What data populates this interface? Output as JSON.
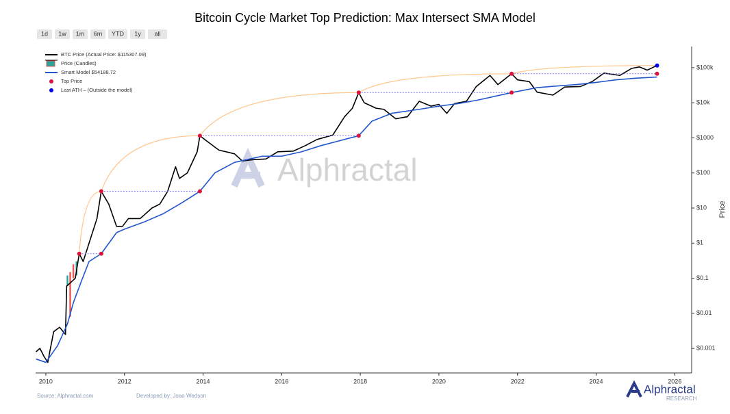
{
  "chart_data": {
    "type": "line",
    "title": "Bitcoin Cycle Market Top Prediction: Max Intersect SMA Model",
    "range_buttons": [
      "1d",
      "1w",
      "1m",
      "6m",
      "YTD",
      "1y",
      "all"
    ],
    "active_button": "all",
    "y_label": "Price",
    "log_scale": true,
    "legend": "top-left",
    "watermark": "Alphractal",
    "logo": {
      "name": "Alphractal",
      "tag": "RESEARCH"
    },
    "source": "Source: Alphractal.com",
    "credit": "Developed by: Joao Wedson",
    "xlim": [
      2009.74,
      2026.43
    ],
    "xticks": [
      2010,
      2012,
      2014,
      2016,
      2018,
      2020,
      2022,
      2024,
      2026
    ],
    "ylim": [
      0.0002,
      400000
    ],
    "yticks": [
      {
        "value": 0.001,
        "label": "$0.001"
      },
      {
        "value": 0.01,
        "label": "$0.01"
      },
      {
        "value": 0.1,
        "label": "$0.1"
      },
      {
        "value": 1,
        "label": "$1"
      },
      {
        "value": 10,
        "label": "$10"
      },
      {
        "value": 100,
        "label": "$100"
      },
      {
        "value": 1000,
        "label": "$1000"
      },
      {
        "value": 10000,
        "label": "$10k"
      },
      {
        "value": 100000,
        "label": "$100k"
      }
    ],
    "series": [
      {
        "name": "BTC Price (Actual Price: $115307.09)",
        "style": "line",
        "color": "#000000",
        "x": [
          2009.75,
          2009.85,
          2009.95,
          2010.05,
          2010.1,
          2010.2,
          2010.35,
          2010.5,
          2010.53,
          2010.6,
          2010.75,
          2010.85,
          2010.95,
          2011.1,
          2011.3,
          2011.41,
          2011.6,
          2011.8,
          2011.95,
          2012.1,
          2012.4,
          2012.7,
          2012.9,
          2013.1,
          2013.3,
          2013.4,
          2013.6,
          2013.85,
          2013.92,
          2014.1,
          2014.4,
          2014.8,
          2015.0,
          2015.3,
          2015.6,
          2015.9,
          2016.3,
          2016.6,
          2016.9,
          2017.3,
          2017.6,
          2017.8,
          2017.96,
          2018.1,
          2018.4,
          2018.6,
          2018.9,
          2019.2,
          2019.5,
          2019.8,
          2020.0,
          2020.2,
          2020.4,
          2020.7,
          2020.95,
          2021.3,
          2021.5,
          2021.85,
          2022.0,
          2022.3,
          2022.5,
          2022.9,
          2023.2,
          2023.6,
          2023.9,
          2024.2,
          2024.6,
          2024.9,
          2025.1,
          2025.3,
          2025.55
        ],
        "values": [
          0.0008,
          0.001,
          0.0006,
          0.0004,
          0.0008,
          0.003,
          0.004,
          0.0025,
          0.06,
          0.07,
          0.1,
          0.5,
          0.3,
          1,
          5,
          30,
          13,
          3,
          3,
          5,
          5,
          10,
          13,
          30,
          150,
          70,
          100,
          400,
          1150,
          800,
          450,
          350,
          220,
          240,
          250,
          400,
          420,
          600,
          900,
          1200,
          4000,
          7000,
          19500,
          10000,
          7000,
          6500,
          3500,
          4000,
          11000,
          8000,
          9000,
          5000,
          9500,
          11000,
          29000,
          60000,
          33000,
          67000,
          45000,
          40000,
          20000,
          16500,
          28000,
          29000,
          40000,
          70000,
          60000,
          95000,
          105000,
          85000,
          115307.09
        ]
      },
      {
        "name": "Price (Candles)",
        "style": "candles",
        "up_color": "#26a69a",
        "down_color": "#ef5350",
        "x": [
          2010.55,
          2010.62,
          2010.7,
          2010.78
        ],
        "open": [
          0.06,
          0.15,
          0.25,
          0.12
        ],
        "close": [
          0.12,
          0.008,
          0.1,
          0.3
        ]
      },
      {
        "name": "Smart Model $54188.72",
        "style": "line",
        "color": "#2255cc",
        "x": [
          2009.75,
          2010.0,
          2010.3,
          2010.55,
          2010.7,
          2010.9,
          2011.1,
          2011.41,
          2011.8,
          2012.0,
          2012.5,
          2013.0,
          2013.5,
          2013.92,
          2014.3,
          2014.8,
          2015.5,
          2016.0,
          2016.5,
          2017.0,
          2017.96,
          2018.3,
          2018.8,
          2019.5,
          2020.0,
          2020.5,
          2021.0,
          2021.85,
          2022.5,
          2023.0,
          2023.5,
          2024.0,
          2024.5,
          2025.0,
          2025.55
        ],
        "values": [
          0.0005,
          0.0004,
          0.0012,
          0.005,
          0.02,
          0.08,
          0.3,
          0.5,
          2,
          2.5,
          4,
          7,
          15,
          30,
          100,
          200,
          300,
          300,
          400,
          600,
          1150,
          3000,
          5000,
          6500,
          8000,
          9500,
          12000,
          19500,
          27000,
          30000,
          33000,
          38000,
          45000,
          50000,
          54188.72
        ]
      },
      {
        "name": "Top Price",
        "style": "markers",
        "color": "#dc143c",
        "pairs": true,
        "x": [
          2010.85,
          2011.41,
          2011.41,
          2013.92,
          2013.92,
          2017.96,
          2017.96,
          2021.85,
          2021.85,
          2025.55
        ],
        "values": [
          0.5,
          0.5,
          30,
          30,
          1150,
          1150,
          19500,
          19500,
          67000,
          67000
        ]
      },
      {
        "name": "Last ATH – (Outside the model)",
        "style": "markers",
        "color": "#0000ee",
        "x": [
          2025.55
        ],
        "values": [
          115307.09
        ]
      },
      {
        "style": "curve",
        "color": "#ffc58a",
        "x": [
          2010.85,
          2011.41,
          2013.92,
          2017.96,
          2021.85,
          2025.55
        ],
        "values": [
          0.5,
          30,
          1150,
          19500,
          67000,
          115307.09
        ]
      }
    ]
  }
}
